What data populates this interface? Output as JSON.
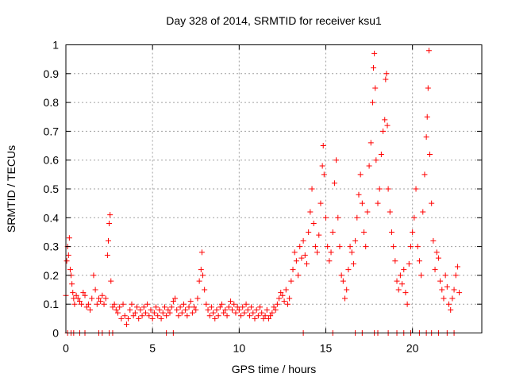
{
  "chart_data": {
    "type": "scatter",
    "title": "Day 328 of 2014, SRMTID for receiver ksu1",
    "xlabel": "GPS time / hours",
    "ylabel": "SRMTID / TECUs",
    "xlim": [
      0,
      24
    ],
    "ylim": [
      0,
      1
    ],
    "xticks": [
      0,
      5,
      10,
      15,
      20
    ],
    "yticks": [
      0,
      0.1,
      0.2,
      0.3,
      0.4,
      0.5,
      0.6,
      0.7,
      0.8,
      0.9,
      1
    ],
    "ytick_labels": [
      "0",
      "0.1",
      "0.2",
      "0.3",
      "0.4",
      "0.5",
      "0.6",
      "0.7",
      "0.8",
      "0.9",
      "1"
    ],
    "grid": true,
    "marker": "+",
    "color": "#ff0000",
    "series": [
      {
        "name": "SRMTID",
        "points": [
          [
            0.0,
            0.13
          ],
          [
            0.05,
            0.25
          ],
          [
            0.1,
            0.3
          ],
          [
            0.15,
            0.27
          ],
          [
            0.2,
            0.33
          ],
          [
            0.25,
            0.22
          ],
          [
            0.3,
            0.2
          ],
          [
            0.35,
            0.17
          ],
          [
            0.4,
            0.14
          ],
          [
            0.45,
            0.12
          ],
          [
            0.5,
            0.1
          ],
          [
            0.6,
            0.13
          ],
          [
            0.7,
            0.12
          ],
          [
            0.8,
            0.11
          ],
          [
            0.9,
            0.1
          ],
          [
            1.0,
            0.14
          ],
          [
            1.1,
            0.13
          ],
          [
            1.2,
            0.09
          ],
          [
            1.3,
            0.1
          ],
          [
            1.4,
            0.08
          ],
          [
            1.5,
            0.12
          ],
          [
            1.6,
            0.2
          ],
          [
            1.7,
            0.15
          ],
          [
            1.8,
            0.1
          ],
          [
            1.9,
            0.12
          ],
          [
            2.0,
            0.11
          ],
          [
            2.1,
            0.13
          ],
          [
            2.2,
            0.1
          ],
          [
            2.3,
            0.12
          ],
          [
            2.4,
            0.27
          ],
          [
            2.45,
            0.32
          ],
          [
            2.5,
            0.38
          ],
          [
            2.55,
            0.41
          ],
          [
            2.6,
            0.18
          ],
          [
            2.7,
            0.09
          ],
          [
            2.8,
            0.1
          ],
          [
            2.9,
            0.08
          ],
          [
            3.0,
            0.07
          ],
          [
            3.1,
            0.09
          ],
          [
            3.2,
            0.05
          ],
          [
            3.3,
            0.1
          ],
          [
            3.4,
            0.06
          ],
          [
            3.5,
            0.03
          ],
          [
            3.6,
            0.05
          ],
          [
            3.7,
            0.08
          ],
          [
            3.8,
            0.1
          ],
          [
            3.9,
            0.06
          ],
          [
            4.0,
            0.07
          ],
          [
            4.1,
            0.09
          ],
          [
            4.2,
            0.05
          ],
          [
            4.3,
            0.08
          ],
          [
            4.4,
            0.06
          ],
          [
            4.5,
            0.09
          ],
          [
            4.6,
            0.07
          ],
          [
            4.7,
            0.1
          ],
          [
            4.8,
            0.06
          ],
          [
            4.9,
            0.08
          ],
          [
            5.0,
            0.05
          ],
          [
            5.1,
            0.07
          ],
          [
            5.2,
            0.09
          ],
          [
            5.3,
            0.06
          ],
          [
            5.4,
            0.08
          ],
          [
            5.5,
            0.05
          ],
          [
            5.6,
            0.07
          ],
          [
            5.7,
            0.09
          ],
          [
            5.8,
            0.06
          ],
          [
            5.9,
            0.08
          ],
          [
            6.0,
            0.07
          ],
          [
            6.1,
            0.09
          ],
          [
            6.2,
            0.11
          ],
          [
            6.3,
            0.12
          ],
          [
            6.4,
            0.08
          ],
          [
            6.5,
            0.06
          ],
          [
            6.6,
            0.09
          ],
          [
            6.7,
            0.07
          ],
          [
            6.8,
            0.1
          ],
          [
            6.9,
            0.08
          ],
          [
            7.0,
            0.06
          ],
          [
            7.1,
            0.09
          ],
          [
            7.2,
            0.11
          ],
          [
            7.3,
            0.07
          ],
          [
            7.4,
            0.09
          ],
          [
            7.5,
            0.08
          ],
          [
            7.6,
            0.12
          ],
          [
            7.7,
            0.18
          ],
          [
            7.8,
            0.22
          ],
          [
            7.85,
            0.28
          ],
          [
            7.9,
            0.2
          ],
          [
            8.0,
            0.15
          ],
          [
            8.1,
            0.1
          ],
          [
            8.2,
            0.08
          ],
          [
            8.3,
            0.06
          ],
          [
            8.4,
            0.09
          ],
          [
            8.5,
            0.07
          ],
          [
            8.6,
            0.05
          ],
          [
            8.7,
            0.08
          ],
          [
            8.8,
            0.06
          ],
          [
            8.9,
            0.09
          ],
          [
            9.0,
            0.1
          ],
          [
            9.1,
            0.07
          ],
          [
            9.2,
            0.08
          ],
          [
            9.3,
            0.06
          ],
          [
            9.4,
            0.09
          ],
          [
            9.5,
            0.11
          ],
          [
            9.6,
            0.08
          ],
          [
            9.7,
            0.1
          ],
          [
            9.8,
            0.07
          ],
          [
            9.9,
            0.09
          ],
          [
            10.0,
            0.08
          ],
          [
            10.1,
            0.06
          ],
          [
            10.2,
            0.09
          ],
          [
            10.3,
            0.07
          ],
          [
            10.4,
            0.1
          ],
          [
            10.5,
            0.08
          ],
          [
            10.6,
            0.06
          ],
          [
            10.7,
            0.09
          ],
          [
            10.8,
            0.07
          ],
          [
            10.9,
            0.05
          ],
          [
            11.0,
            0.08
          ],
          [
            11.1,
            0.06
          ],
          [
            11.2,
            0.09
          ],
          [
            11.3,
            0.07
          ],
          [
            11.4,
            0.05
          ],
          [
            11.5,
            0.06
          ],
          [
            11.6,
            0.08
          ],
          [
            11.7,
            0.05
          ],
          [
            11.8,
            0.06
          ],
          [
            11.9,
            0.07
          ],
          [
            12.0,
            0.09
          ],
          [
            12.1,
            0.08
          ],
          [
            12.2,
            0.1
          ],
          [
            12.3,
            0.12
          ],
          [
            12.4,
            0.14
          ],
          [
            12.5,
            0.13
          ],
          [
            12.6,
            0.11
          ],
          [
            12.7,
            0.15
          ],
          [
            12.8,
            0.1
          ],
          [
            12.9,
            0.12
          ],
          [
            13.0,
            0.18
          ],
          [
            13.1,
            0.22
          ],
          [
            13.2,
            0.28
          ],
          [
            13.3,
            0.25
          ],
          [
            13.4,
            0.2
          ],
          [
            13.5,
            0.3
          ],
          [
            13.6,
            0.26
          ],
          [
            13.7,
            0.32
          ],
          [
            13.8,
            0.27
          ],
          [
            13.9,
            0.24
          ],
          [
            14.0,
            0.35
          ],
          [
            14.1,
            0.42
          ],
          [
            14.2,
            0.5
          ],
          [
            14.3,
            0.38
          ],
          [
            14.4,
            0.3
          ],
          [
            14.5,
            0.28
          ],
          [
            14.6,
            0.34
          ],
          [
            14.7,
            0.45
          ],
          [
            14.8,
            0.58
          ],
          [
            14.85,
            0.65
          ],
          [
            14.9,
            0.55
          ],
          [
            15.0,
            0.4
          ],
          [
            15.1,
            0.3
          ],
          [
            15.2,
            0.25
          ],
          [
            15.3,
            0.28
          ],
          [
            15.4,
            0.35
          ],
          [
            15.5,
            0.52
          ],
          [
            15.6,
            0.6
          ],
          [
            15.7,
            0.4
          ],
          [
            15.8,
            0.3
          ],
          [
            15.9,
            0.2
          ],
          [
            16.0,
            0.18
          ],
          [
            16.1,
            0.12
          ],
          [
            16.2,
            0.15
          ],
          [
            16.3,
            0.22
          ],
          [
            16.4,
            0.3
          ],
          [
            16.5,
            0.28
          ],
          [
            16.6,
            0.24
          ],
          [
            16.7,
            0.32
          ],
          [
            16.8,
            0.4
          ],
          [
            16.9,
            0.48
          ],
          [
            17.0,
            0.55
          ],
          [
            17.1,
            0.45
          ],
          [
            17.2,
            0.35
          ],
          [
            17.3,
            0.3
          ],
          [
            17.4,
            0.42
          ],
          [
            17.5,
            0.58
          ],
          [
            17.6,
            0.66
          ],
          [
            17.7,
            0.8
          ],
          [
            17.75,
            0.92
          ],
          [
            17.8,
            0.97
          ],
          [
            17.85,
            0.85
          ],
          [
            17.9,
            0.6
          ],
          [
            18.0,
            0.45
          ],
          [
            18.1,
            0.5
          ],
          [
            18.2,
            0.62
          ],
          [
            18.3,
            0.7
          ],
          [
            18.4,
            0.74
          ],
          [
            18.45,
            0.88
          ],
          [
            18.5,
            0.9
          ],
          [
            18.55,
            0.72
          ],
          [
            18.6,
            0.5
          ],
          [
            18.7,
            0.42
          ],
          [
            18.8,
            0.35
          ],
          [
            18.9,
            0.3
          ],
          [
            19.0,
            0.25
          ],
          [
            19.1,
            0.18
          ],
          [
            19.2,
            0.15
          ],
          [
            19.3,
            0.2
          ],
          [
            19.4,
            0.17
          ],
          [
            19.5,
            0.22
          ],
          [
            19.6,
            0.14
          ],
          [
            19.7,
            0.1
          ],
          [
            19.8,
            0.24
          ],
          [
            19.9,
            0.3
          ],
          [
            20.0,
            0.35
          ],
          [
            20.1,
            0.4
          ],
          [
            20.2,
            0.5
          ],
          [
            20.3,
            0.3
          ],
          [
            20.4,
            0.25
          ],
          [
            20.5,
            0.2
          ],
          [
            20.6,
            0.42
          ],
          [
            20.7,
            0.55
          ],
          [
            20.8,
            0.68
          ],
          [
            20.85,
            0.75
          ],
          [
            20.9,
            0.85
          ],
          [
            20.95,
            0.98
          ],
          [
            21.0,
            0.62
          ],
          [
            21.1,
            0.45
          ],
          [
            21.2,
            0.32
          ],
          [
            21.3,
            0.22
          ],
          [
            21.4,
            0.28
          ],
          [
            21.5,
            0.26
          ],
          [
            21.6,
            0.18
          ],
          [
            21.7,
            0.15
          ],
          [
            21.8,
            0.12
          ],
          [
            21.9,
            0.2
          ],
          [
            22.0,
            0.16
          ],
          [
            22.1,
            0.1
          ],
          [
            22.2,
            0.08
          ],
          [
            22.3,
            0.12
          ],
          [
            22.4,
            0.15
          ],
          [
            22.5,
            0.2
          ],
          [
            22.6,
            0.23
          ],
          [
            22.7,
            0.14
          ],
          [
            0.1,
            0.0
          ],
          [
            0.3,
            0.0
          ],
          [
            0.45,
            0.0
          ],
          [
            0.8,
            0.0
          ],
          [
            1.1,
            0.0
          ],
          [
            1.9,
            0.0
          ],
          [
            2.1,
            0.0
          ],
          [
            2.5,
            0.0
          ],
          [
            2.7,
            0.0
          ],
          [
            5.8,
            0.0
          ],
          [
            6.2,
            0.0
          ],
          [
            13.7,
            0.0
          ],
          [
            15.4,
            0.0
          ],
          [
            16.7,
            0.0
          ],
          [
            17.1,
            0.0
          ],
          [
            17.8,
            0.0
          ],
          [
            18.0,
            0.0
          ],
          [
            18.6,
            0.0
          ],
          [
            19.1,
            0.0
          ],
          [
            19.5,
            0.0
          ],
          [
            19.9,
            0.0
          ],
          [
            20.4,
            0.0
          ],
          [
            20.8,
            0.0
          ],
          [
            21.1,
            0.0
          ],
          [
            21.5,
            0.0
          ],
          [
            22.0,
            0.0
          ],
          [
            22.4,
            0.0
          ]
        ]
      }
    ]
  }
}
